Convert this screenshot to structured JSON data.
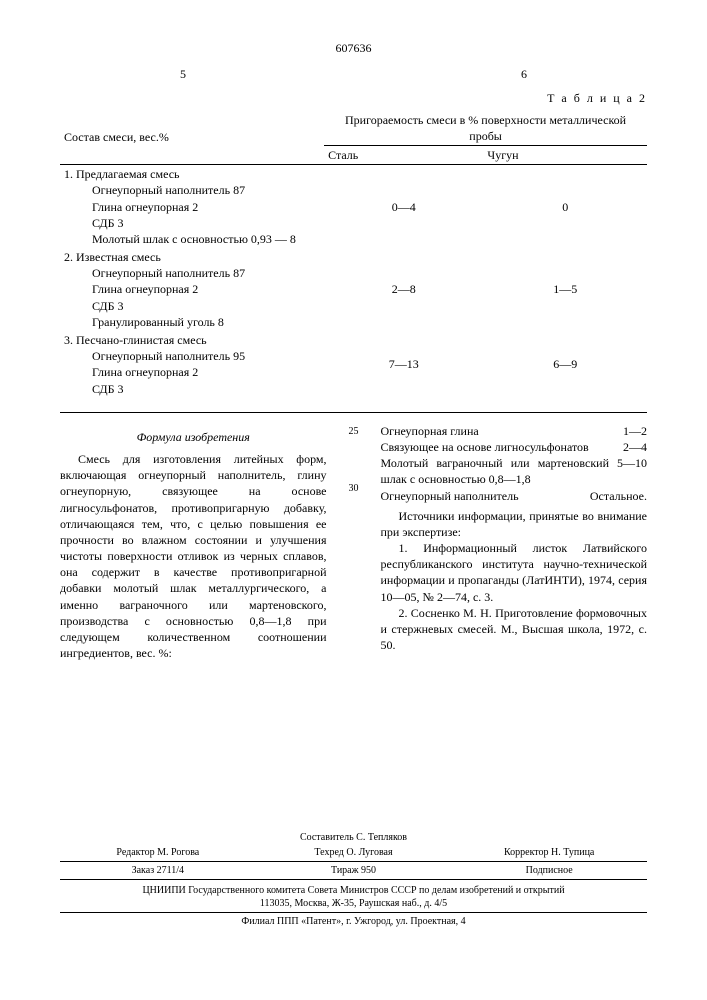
{
  "doc_number": "607636",
  "col_left_num": "5",
  "col_right_num": "6",
  "table2_label": "Т а б л и ц а 2",
  "t2": {
    "col1_header": "Состав смеси, вес.%",
    "col2_header_top": "Пригораемость смеси в % поверхности металлической пробы",
    "sub_steel": "Сталь",
    "sub_iron": "Чугун",
    "rows": [
      {
        "lab": "1. Предлагаемая смесь",
        "sub": [
          "Огнеупорный наполнитель 87",
          "Глина огнеупорная 2",
          "СДБ 3",
          "Молотый шлак с основностью 0,93 — 8"
        ],
        "steel": "0—4",
        "iron": "0"
      },
      {
        "lab": "2. Известная смесь",
        "sub": [
          "Огнеупорный наполнитель 87",
          "Глина огнеупорная 2",
          "СДБ 3",
          "Гранулированный уголь 8"
        ],
        "steel": "2—8",
        "iron": "1—5"
      },
      {
        "lab": "3. Песчано-глинистая смесь",
        "sub": [
          "Огнеупорный наполнитель 95",
          "Глина огнеупорная 2",
          "СДБ 3"
        ],
        "steel": "7—13",
        "iron": "6—9"
      }
    ]
  },
  "linemarks": {
    "a": "25",
    "b": "30"
  },
  "left_col": {
    "formula_title": "Формула изобретения",
    "body": "Смесь для изготовления литейных форм, включающая огнеупорный наполнитель, глину огнеупорную, связующее на основе лигносульфонатов, противопригарную добавку, отличающаяся тем, что, с целью повышения ее прочности во влажном состоянии и улучшения чистоты поверхности отливок из черных сплавов, она содержит в качестве противопригарной добавки молотый шлак металлургического, а именно ваграночного или мартеновского, производства с основностью 0,8—1,8 при следующем количественном соотношении ингредиентов, вес. %:"
  },
  "right_col": {
    "ingredients": [
      {
        "name": "Огнеупорная глина",
        "val": "1—2"
      },
      {
        "name": "Связующее на основе лигносульфонатов",
        "val": "2—4"
      },
      {
        "name": "Молотый ваграночный или мартеновский шлак с основностью 0,8—1,8",
        "val": "5—10"
      },
      {
        "name": "Огнеупорный наполнитель",
        "val": "Остальное."
      }
    ],
    "sources_title": "Источники информации, принятые во внимание при экспертизе:",
    "sources": [
      "1. Информационный листок Латвийского республиканского института научно-технической информации и пропаганды (ЛатИНТИ), 1974, серия 10—05, № 2—74, с. 3.",
      "2. Сосненко М. Н. Приготовление формовочных и стержневых смесей. М., Высшая школа, 1972, с. 50."
    ]
  },
  "footer": {
    "compiler": "Составитель С. Тепляков",
    "editor": "Редактор М. Рогова",
    "tech": "Техред О. Луговая",
    "corr": "Корректор Н. Тупица",
    "order": "Заказ 2711/4",
    "tirazh": "Тираж 950",
    "sub": "Подписное",
    "org": "ЦНИИПИ Государственного комитета Совета Министров СССР по делам изобретений и открытий",
    "addr": "113035, Москва, Ж-35, Раушская наб., д. 4/5",
    "filial": "Филиал ППП «Патент», г. Ужгород, ул. Проектная, 4"
  }
}
